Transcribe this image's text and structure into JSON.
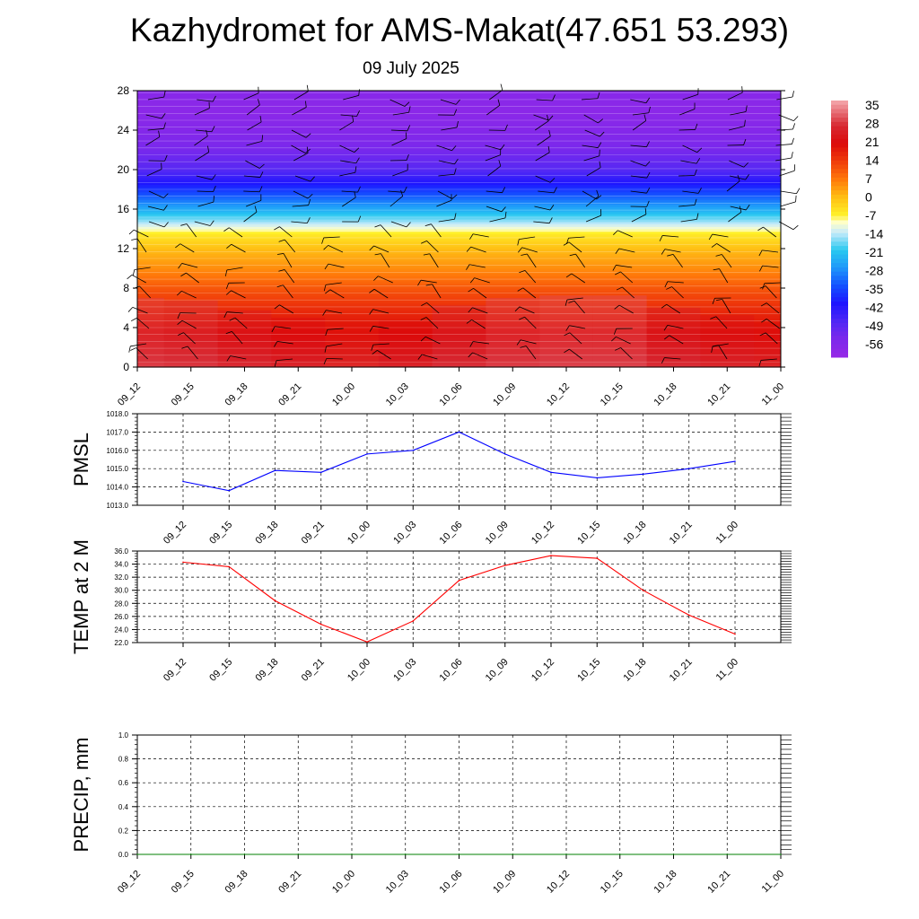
{
  "title": "Kazhydromet for AMS-Makat(47.651 53.293)",
  "subtitle": "09 July 2025",
  "chart_data": [
    {
      "type": "heatmap",
      "name": "temperature-cross-section",
      "y_ticks": [
        "0",
        "4",
        "8",
        "12",
        "16",
        "20",
        "24",
        "28"
      ],
      "ylim": [
        0,
        28
      ],
      "x_categories": [
        "09_12",
        "09_15",
        "09_18",
        "09_21",
        "10_00",
        "10_03",
        "10_06",
        "10_09",
        "10_12",
        "10_15",
        "10_18",
        "10_21",
        "11_00"
      ],
      "colorbar_labels": [
        "35",
        "28",
        "21",
        "14",
        "7",
        "0",
        "-7",
        "-14",
        "-21",
        "-28",
        "-35",
        "-42",
        "-49",
        "-56"
      ],
      "colorbar_range": [
        -63,
        38
      ],
      "surface_temperature": [
        34,
        33,
        29,
        26,
        23,
        25,
        31,
        34,
        35,
        35,
        30,
        27,
        24
      ],
      "level_profile": [
        {
          "y": 0,
          "value": 30
        },
        {
          "y": 2,
          "value": 24
        },
        {
          "y": 4,
          "value": 20
        },
        {
          "y": 6,
          "value": 16
        },
        {
          "y": 8,
          "value": 11
        },
        {
          "y": 10,
          "value": 5
        },
        {
          "y": 12,
          "value": 0
        },
        {
          "y": 13.5,
          "value": -6
        },
        {
          "y": 14.5,
          "value": -14
        },
        {
          "y": 16,
          "value": -25
        },
        {
          "y": 18,
          "value": -38
        },
        {
          "y": 20,
          "value": -50
        },
        {
          "y": 22,
          "value": -55
        },
        {
          "y": 24,
          "value": -58
        },
        {
          "y": 26,
          "value": -60
        },
        {
          "y": 28,
          "value": -59
        }
      ],
      "wind_barbs": true
    },
    {
      "type": "line",
      "ylabel": "PMSL",
      "x": [
        "09_12",
        "09_15",
        "09_18",
        "09_21",
        "10_00",
        "10_03",
        "10_06",
        "10_09",
        "10_12",
        "10_15",
        "10_18",
        "10_21",
        "11_00"
      ],
      "y_ticks": [
        "1013.0",
        "1014.0",
        "1015.0",
        "1016.0",
        "1017.0",
        "1018.0"
      ],
      "ylim": [
        1013,
        1018
      ],
      "series": [
        {
          "values": [
            1014.3,
            1013.8,
            1014.9,
            1014.8,
            1015.8,
            1016.0,
            1017.0,
            1015.8,
            1014.8,
            1014.5,
            1014.7,
            1015.0,
            1015.4
          ],
          "color": "#0000ff"
        }
      ],
      "grid": true
    },
    {
      "type": "line",
      "ylabel": "TEMP at 2 M",
      "x": [
        "09_12",
        "09_15",
        "09_18",
        "09_21",
        "10_00",
        "10_03",
        "10_06",
        "10_09",
        "10_12",
        "10_15",
        "10_18",
        "10_21",
        "11_00"
      ],
      "y_ticks": [
        "22.0",
        "24.0",
        "26.0",
        "28.0",
        "30.0",
        "32.0",
        "34.0",
        "36.0"
      ],
      "ylim": [
        22,
        36
      ],
      "series": [
        {
          "values": [
            34.3,
            33.6,
            28.4,
            24.8,
            22.1,
            25.3,
            31.5,
            33.8,
            35.3,
            34.9,
            30.0,
            26.2,
            23.3
          ],
          "color": "#ff0000"
        }
      ],
      "grid": true
    },
    {
      "type": "line",
      "ylabel": "PRECIP, mm",
      "x": [
        "09_12",
        "09_15",
        "09_18",
        "09_21",
        "10_00",
        "10_03",
        "10_06",
        "10_09",
        "10_12",
        "10_15",
        "10_18",
        "10_21",
        "11_00"
      ],
      "y_ticks": [
        "0.0",
        "0.2",
        "0.4",
        "0.6",
        "0.8",
        "1.0"
      ],
      "ylim": [
        0,
        1
      ],
      "series": [
        {
          "values": [
            0,
            0,
            0,
            0,
            0,
            0,
            0,
            0,
            0,
            0,
            0,
            0,
            0
          ],
          "color": "#008000"
        }
      ],
      "grid": true
    }
  ]
}
